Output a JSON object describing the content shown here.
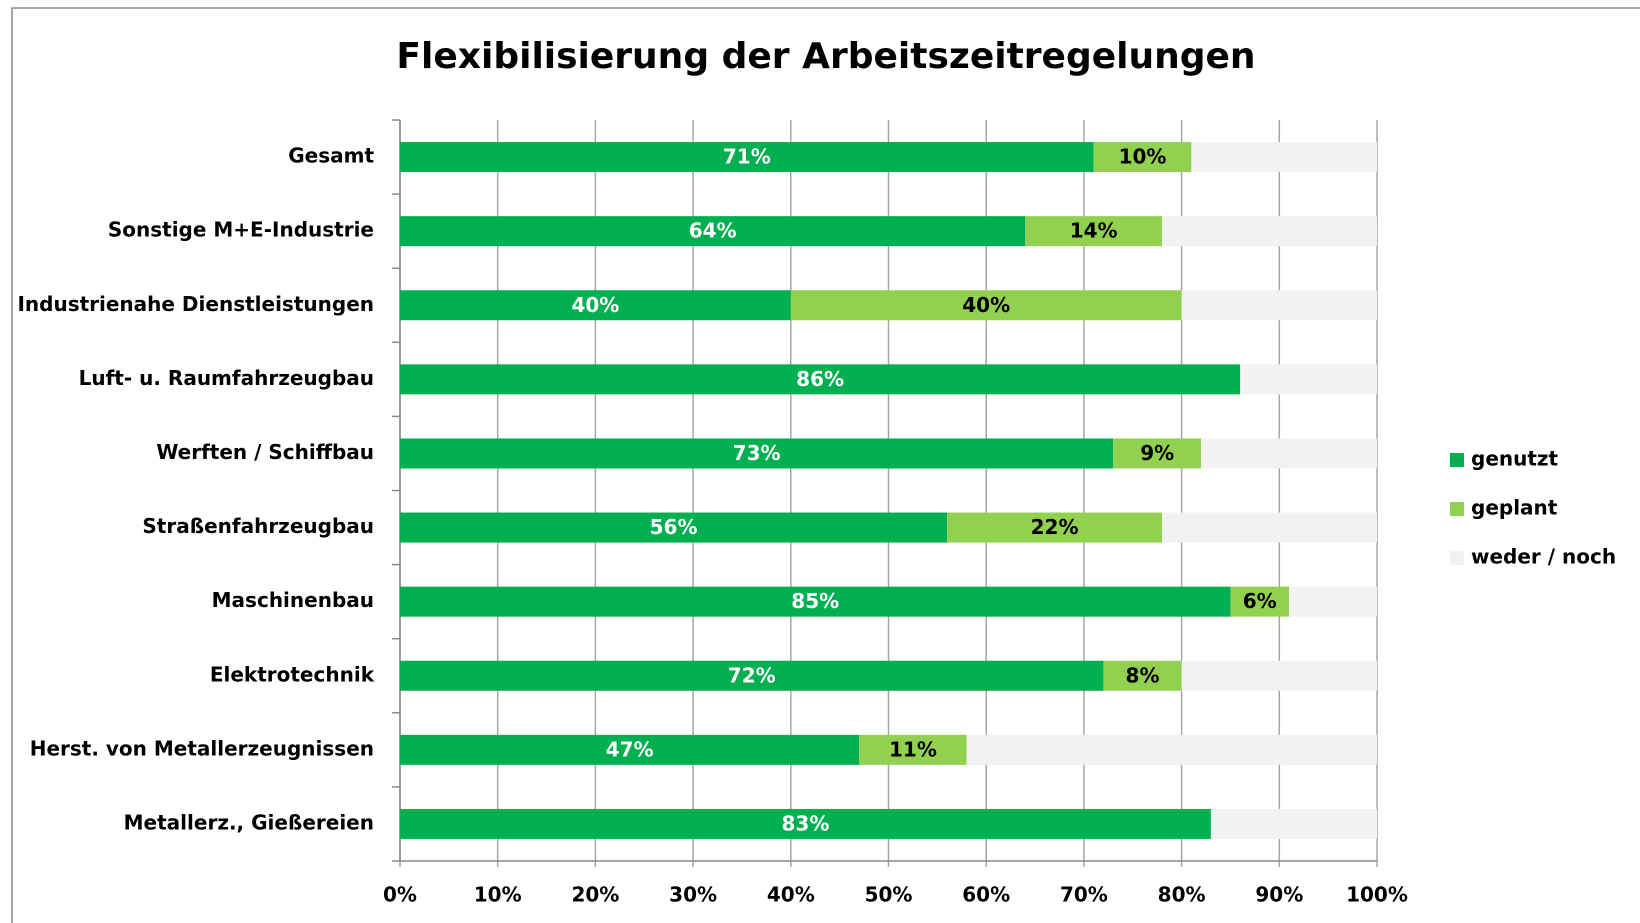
{
  "chart_data": {
    "type": "stacked-barh",
    "title": "Flexibilisierung der Arbeitszeitregelungen",
    "categories": [
      "Gesamt",
      "Sonstige M+E-Industrie",
      "Industrienahe Dienstleistungen",
      "Luft- u. Raumfahrzeugbau",
      "Werften / Schiffbau",
      "Straßenfahrzeugbau",
      "Maschinenbau",
      "Elektrotechnik",
      "Herst. von Metallerzeugnissen",
      "Metallerz., Gießereien"
    ],
    "series": [
      {
        "name": "genutzt",
        "color": "#00b050",
        "label_color": "#ffffff",
        "values": [
          71,
          64,
          40,
          86,
          73,
          56,
          85,
          72,
          47,
          83
        ],
        "value_labels": [
          "71%",
          "64%",
          "40%",
          "86%",
          "73%",
          "56%",
          "85%",
          "72%",
          "47%",
          "83%"
        ]
      },
      {
        "name": "geplant",
        "color": "#92d050",
        "label_color": "#000000",
        "values": [
          10,
          14,
          40,
          0,
          9,
          22,
          6,
          8,
          11,
          0
        ],
        "value_labels": [
          "10%",
          "14%",
          "40%",
          null,
          "9%",
          "22%",
          "6%",
          "8%",
          "11%",
          null
        ]
      },
      {
        "name": "weder / noch",
        "color": "#f2f2f2",
        "values": [
          19,
          22,
          20,
          14,
          18,
          22,
          9,
          20,
          42,
          17
        ]
      }
    ],
    "xlim": [
      0,
      100
    ],
    "xticks": [
      {
        "value": 0,
        "label": "0%"
      },
      {
        "value": 10,
        "label": "10%"
      },
      {
        "value": 20,
        "label": "20%"
      },
      {
        "value": 30,
        "label": "30%"
      },
      {
        "value": 40,
        "label": "40%"
      },
      {
        "value": 50,
        "label": "50%"
      },
      {
        "value": 60,
        "label": "60%"
      },
      {
        "value": 70,
        "label": "70%"
      },
      {
        "value": 80,
        "label": "80%"
      },
      {
        "value": 90,
        "label": "90%"
      },
      {
        "value": 100,
        "label": "100%"
      }
    ],
    "grid": true,
    "legend": "right"
  }
}
